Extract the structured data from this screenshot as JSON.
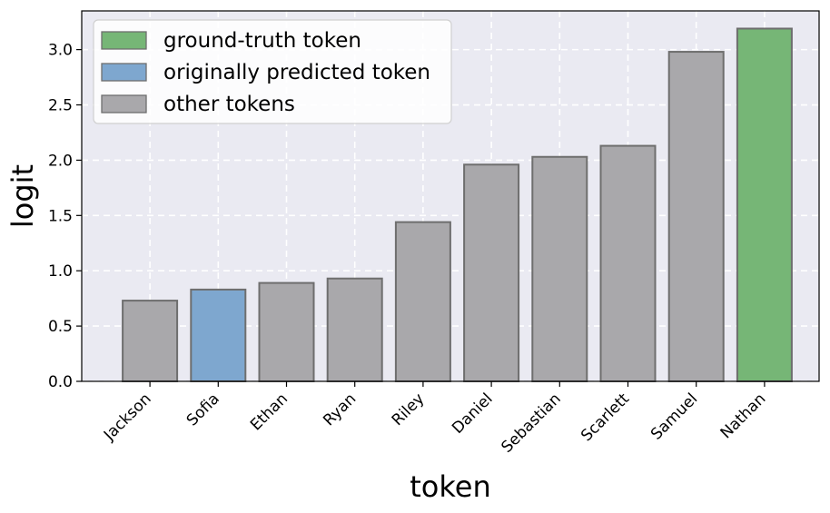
{
  "chart_data": {
    "type": "bar",
    "xlabel": "token",
    "ylabel": "logit",
    "categories": [
      "Jackson",
      "Sofia",
      "Ethan",
      "Ryan",
      "Riley",
      "Daniel",
      "Sebastian",
      "Scarlett",
      "Samuel",
      "Nathan"
    ],
    "values": [
      0.73,
      0.83,
      0.89,
      0.93,
      1.44,
      1.96,
      2.03,
      2.13,
      2.98,
      3.19
    ],
    "bar_kind": [
      "other",
      "predicted",
      "other",
      "other",
      "other",
      "other",
      "other",
      "other",
      "other",
      "ground_truth"
    ],
    "ylim": [
      0,
      3.35
    ],
    "yticks": [
      "0.0",
      "0.5",
      "1.0",
      "1.5",
      "2.0",
      "2.5",
      "3.0"
    ],
    "grid": true,
    "legend": {
      "placement": "top-left",
      "entries": [
        {
          "key": "ground_truth",
          "label": "ground-truth token"
        },
        {
          "key": "predicted",
          "label": "originally predicted token"
        },
        {
          "key": "other",
          "label": "other tokens"
        }
      ]
    },
    "colors": {
      "ground_truth": "#76b676",
      "predicted": "#7ea7cf",
      "other": "#a9a8ab",
      "plot_background": "#eaeaf2",
      "grid": "#ffffff",
      "bar_edge": "#6e6e6e"
    }
  }
}
